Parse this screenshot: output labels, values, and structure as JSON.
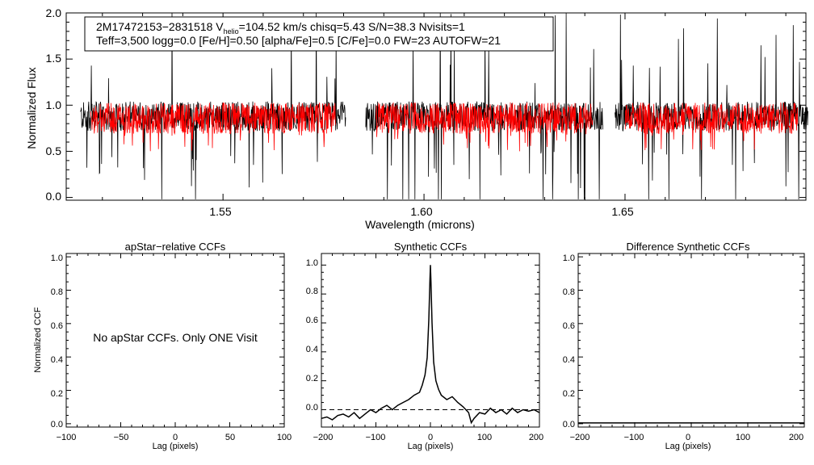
{
  "chart_data": [
    {
      "type": "line",
      "id": "spectrum",
      "title": "",
      "xlabel": "Wavelength (microns)",
      "ylabel": "Normalized Flux",
      "xlim": [
        1.511,
        1.695
      ],
      "ylim": [
        -0.03,
        2.0
      ],
      "xticks": [
        1.55,
        1.6,
        1.65
      ],
      "xtick_labels": [
        "1.55",
        "1.60",
        "1.65"
      ],
      "yticks": [
        0.0,
        0.5,
        1.0,
        1.5,
        2.0
      ],
      "ytick_labels": [
        "0.0",
        "0.5",
        "1.0",
        "1.5",
        "2.0"
      ],
      "detector_chips": [
        [
          1.5145,
          1.5805
        ],
        [
          1.5855,
          1.6445
        ],
        [
          1.6475,
          1.6955
        ]
      ],
      "series": [
        {
          "name": "observed spectrum",
          "color": "#000000",
          "typical_level": 0.88
        },
        {
          "name": "model spectrum",
          "color": "#ff0000",
          "typical_level": 0.86
        }
      ],
      "annotation": {
        "line1_prefix": "2M17472153−2831518  V",
        "line1_sub": "helio",
        "line1_rest": "=104.52 km/s  chisq=5.43  S/N=38.3  Nvisits=1",
        "line2": "Teff=3,500 logg=0.0 [Fe/H]=0.50 [alpha/Fe]=0.5 [C/Fe]=0.0 FW=23 AUTOFW=21"
      }
    },
    {
      "type": "line",
      "id": "apstar_ccf",
      "title": "apStar−relative CCFs",
      "xlabel": "Lag (pixels)",
      "ylabel": "Normalized CCF",
      "xlim": [
        -100,
        100
      ],
      "ylim": [
        -0.02,
        1.02
      ],
      "xticks": [
        -100,
        -50,
        0,
        50,
        100
      ],
      "xtick_labels": [
        "−100",
        "−50",
        "0",
        "50",
        "100"
      ],
      "yticks": [
        0.0,
        0.2,
        0.4,
        0.6,
        0.8,
        1.0
      ],
      "ytick_labels": [
        "0.0",
        "0.2",
        "0.4",
        "0.6",
        "0.8",
        "1.0"
      ],
      "message": "No apStar CCFs.  Only ONE Visit"
    },
    {
      "type": "line",
      "id": "synthetic_ccf",
      "title": "Synthetic CCFs",
      "xlabel": "Lag (pixels)",
      "ylabel": "",
      "xlim": [
        -200,
        200
      ],
      "ylim": [
        -0.12,
        1.08
      ],
      "xticks": [
        -200,
        -100,
        0,
        100,
        200
      ],
      "xtick_labels": [
        "−200",
        "−100",
        "0",
        "100",
        "200"
      ],
      "yticks": [
        0.0,
        0.2,
        0.4,
        0.6,
        0.8,
        1.0
      ],
      "ytick_labels": [
        "0.0",
        "0.2",
        "0.4",
        "0.6",
        "0.8",
        "1.0"
      ],
      "zero_line": 0.0,
      "x": [
        -200,
        -190,
        -180,
        -170,
        -160,
        -150,
        -140,
        -130,
        -120,
        -110,
        -100,
        -90,
        -80,
        -70,
        -60,
        -50,
        -40,
        -30,
        -20,
        -15,
        -10,
        -6,
        -3,
        -1,
        0,
        1,
        3,
        6,
        10,
        15,
        20,
        30,
        40,
        50,
        60,
        70,
        75,
        80,
        90,
        100,
        110,
        120,
        130,
        140,
        150,
        160,
        170,
        180,
        190,
        200
      ],
      "values": [
        -0.06,
        -0.05,
        -0.07,
        -0.04,
        -0.03,
        -0.05,
        -0.02,
        -0.06,
        -0.03,
        0.0,
        -0.02,
        0.01,
        0.03,
        0.0,
        0.03,
        0.05,
        0.07,
        0.1,
        0.12,
        0.17,
        0.24,
        0.36,
        0.62,
        0.88,
        1.0,
        0.88,
        0.6,
        0.33,
        0.2,
        0.14,
        0.1,
        0.07,
        0.09,
        0.05,
        0.02,
        -0.02,
        -0.09,
        -0.06,
        -0.02,
        -0.03,
        0.01,
        -0.02,
        0.0,
        -0.03,
        0.01,
        -0.02,
        0.0,
        -0.01,
        0.0,
        -0.02
      ],
      "color": "#000000"
    },
    {
      "type": "line",
      "id": "difference_ccf",
      "title": "Difference Synthetic CCFs",
      "xlabel": "Lag (pixels)",
      "ylabel": "",
      "xlim": [
        -200,
        200
      ],
      "ylim": [
        -0.02,
        1.02
      ],
      "xticks": [
        -200,
        -100,
        0,
        100,
        200
      ],
      "xtick_labels": [
        "−200",
        "−100",
        "0",
        "100",
        "200"
      ],
      "yticks": [
        0.0,
        0.2,
        0.4,
        0.6,
        0.8,
        1.0
      ],
      "ytick_labels": [
        "0.0",
        "0.2",
        "0.4",
        "0.6",
        "0.8",
        "1.0"
      ],
      "x": [
        -200,
        200
      ],
      "values": [
        0.0,
        0.0
      ],
      "color": "#000000"
    }
  ]
}
